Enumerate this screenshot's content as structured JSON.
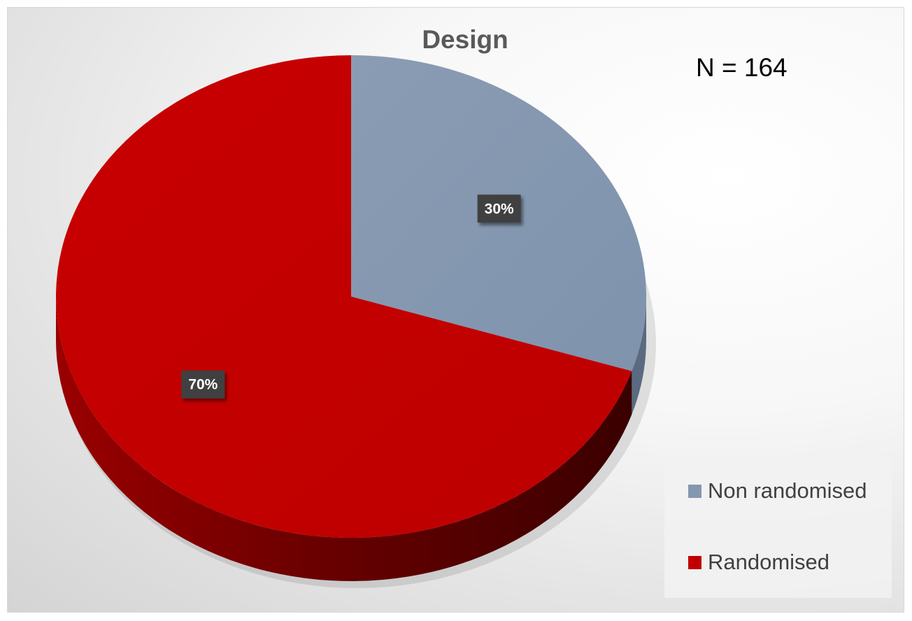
{
  "chart_data": {
    "type": "pie",
    "title": "Design",
    "annotation": "N = 164",
    "slices": [
      {
        "name": "Non randomised",
        "value": 30,
        "label": "30%",
        "color": "#8497B0"
      },
      {
        "name": "Randomised",
        "value": 70,
        "label": "70%",
        "color": "#C00000"
      }
    ],
    "legend_position": "bottom-right",
    "style": "3d"
  }
}
